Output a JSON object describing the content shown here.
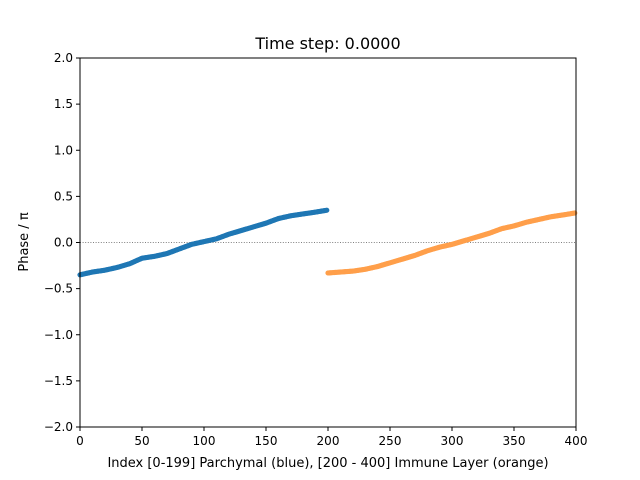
{
  "chart_data": {
    "type": "scatter",
    "title": "Time step: 0.0000",
    "xlabel": "Index [0-199] Parchymal (blue), [200 - 400] Immune Layer (orange)",
    "ylabel": "Phase / π",
    "xlim": [
      0,
      400
    ],
    "ylim": [
      -2.0,
      2.0
    ],
    "x_ticks": [
      0,
      50,
      100,
      150,
      200,
      250,
      300,
      350,
      400
    ],
    "x_tick_labels": [
      "0",
      "50",
      "100",
      "150",
      "200",
      "250",
      "300",
      "350",
      "400"
    ],
    "y_ticks": [
      -2.0,
      -1.5,
      -1.0,
      -0.5,
      0.0,
      0.5,
      1.0,
      1.5,
      2.0
    ],
    "y_tick_labels": [
      "−2.0",
      "−1.5",
      "−1.0",
      "−0.5",
      "0.0",
      "0.5",
      "1.0",
      "1.5",
      "2.0"
    ],
    "grid": false,
    "reference_line": {
      "y": 0.0,
      "style": "dotted",
      "color": "#555555"
    },
    "series": [
      {
        "color": "#1f77b4",
        "x": [
          0,
          10,
          20,
          30,
          40,
          50,
          60,
          70,
          80,
          90,
          100,
          110,
          120,
          130,
          140,
          150,
          160,
          170,
          180,
          190,
          199
        ],
        "y": [
          -0.35,
          -0.32,
          -0.3,
          -0.27,
          -0.23,
          -0.17,
          -0.15,
          -0.12,
          -0.07,
          -0.02,
          0.01,
          0.04,
          0.09,
          0.13,
          0.17,
          0.21,
          0.26,
          0.29,
          0.31,
          0.33,
          0.35
        ]
      },
      {
        "color": "#ff9f4a",
        "x": [
          200,
          210,
          220,
          230,
          240,
          250,
          260,
          270,
          280,
          290,
          300,
          310,
          320,
          330,
          340,
          350,
          360,
          370,
          380,
          390,
          399
        ],
        "y": [
          -0.33,
          -0.32,
          -0.31,
          -0.29,
          -0.26,
          -0.22,
          -0.18,
          -0.14,
          -0.09,
          -0.05,
          -0.02,
          0.02,
          0.06,
          0.1,
          0.15,
          0.18,
          0.22,
          0.25,
          0.28,
          0.3,
          0.32
        ]
      }
    ]
  }
}
